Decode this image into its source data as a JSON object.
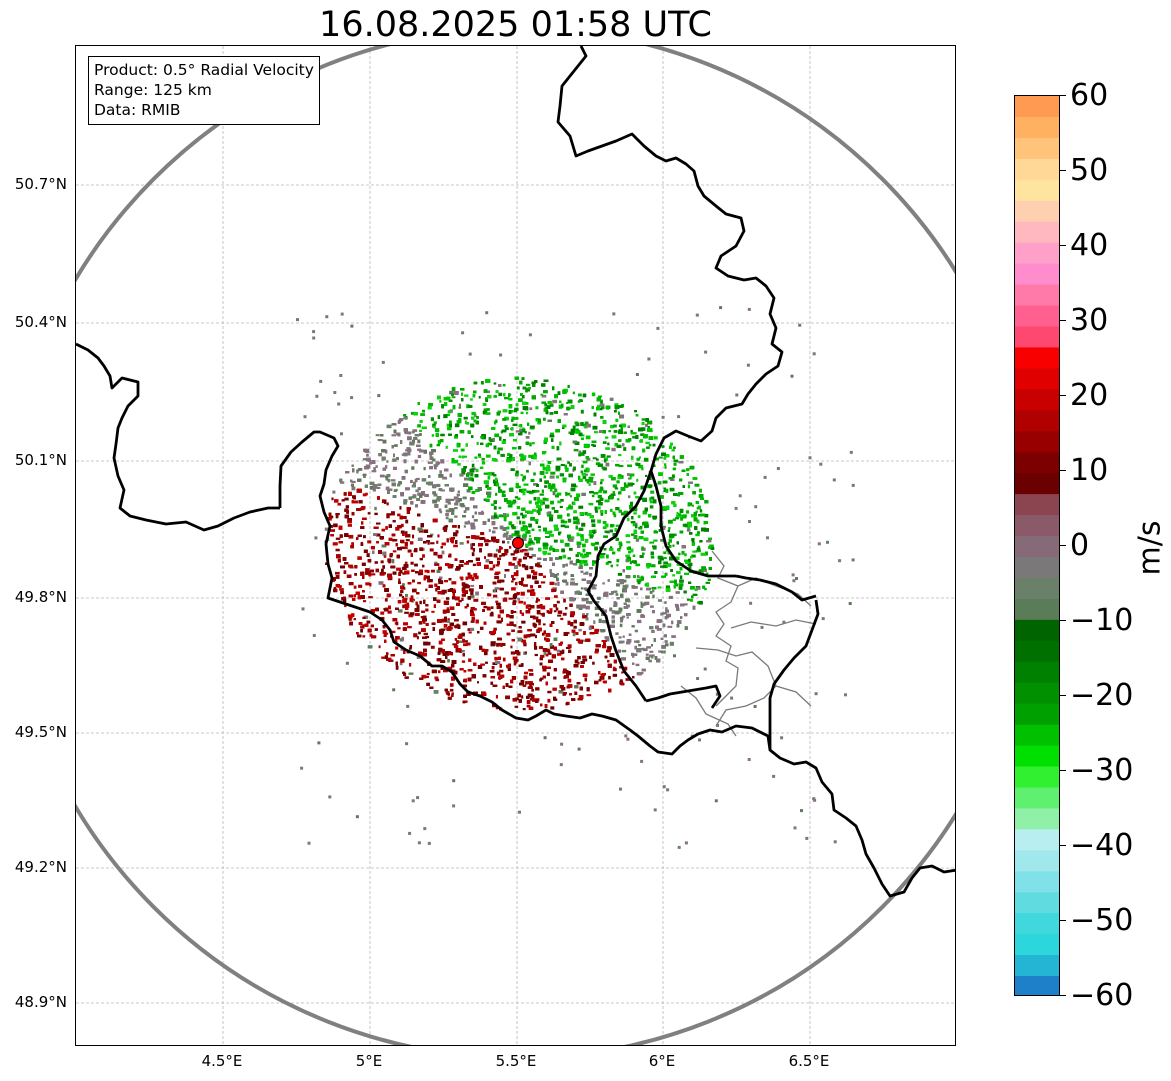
{
  "title": "16.08.2025 01:58 UTC",
  "info": {
    "product": "Product: 0.5° Radial Velocity",
    "range": "Range: 125 km",
    "data": "Data: RMIB"
  },
  "axes": {
    "lat_ticks": [
      "50.7°N",
      "50.4°N",
      "50.1°N",
      "49.8°N",
      "49.5°N",
      "49.2°N",
      "48.9°N"
    ],
    "lon_ticks": [
      "4.5°E",
      "5°E",
      "5.5°E",
      "6°E",
      "6.5°E"
    ]
  },
  "colorbar": {
    "unit": "m/s",
    "ticks": [
      "60",
      "50",
      "40",
      "30",
      "20",
      "10",
      "0",
      "−10",
      "−20",
      "−30",
      "−40",
      "−50",
      "−60"
    ],
    "min": -60,
    "max": 60,
    "stops": [
      "#ff9a52",
      "#ffb060",
      "#ffc47a",
      "#ffd898",
      "#ffe4a0",
      "#ffd0b0",
      "#ffb8c0",
      "#ffa0c8",
      "#ff8ccc",
      "#ff7aa8",
      "#ff6090",
      "#ff4870",
      "#f80000",
      "#e00000",
      "#c80000",
      "#b00000",
      "#980000",
      "#7c0000",
      "#6a0000",
      "#8a4550",
      "#8a5a68",
      "#866a78",
      "#7a7878",
      "#6a8068",
      "#5a7c58",
      "#006400",
      "#007000",
      "#008000",
      "#009000",
      "#00a000",
      "#00c000",
      "#00e000",
      "#30f030",
      "#60f070",
      "#90f0a8",
      "#b8eef0",
      "#a0e8ec",
      "#80e2e8",
      "#60dce0",
      "#40d8dc",
      "#2cd6dc",
      "#24b4d4",
      "#1e80c8"
    ]
  },
  "map_colors": {
    "range_ring": "#808080",
    "borders": "#000000",
    "province_lines": "#808080",
    "grid": "#b0b0b0",
    "radar_site": "#ff0000"
  }
}
